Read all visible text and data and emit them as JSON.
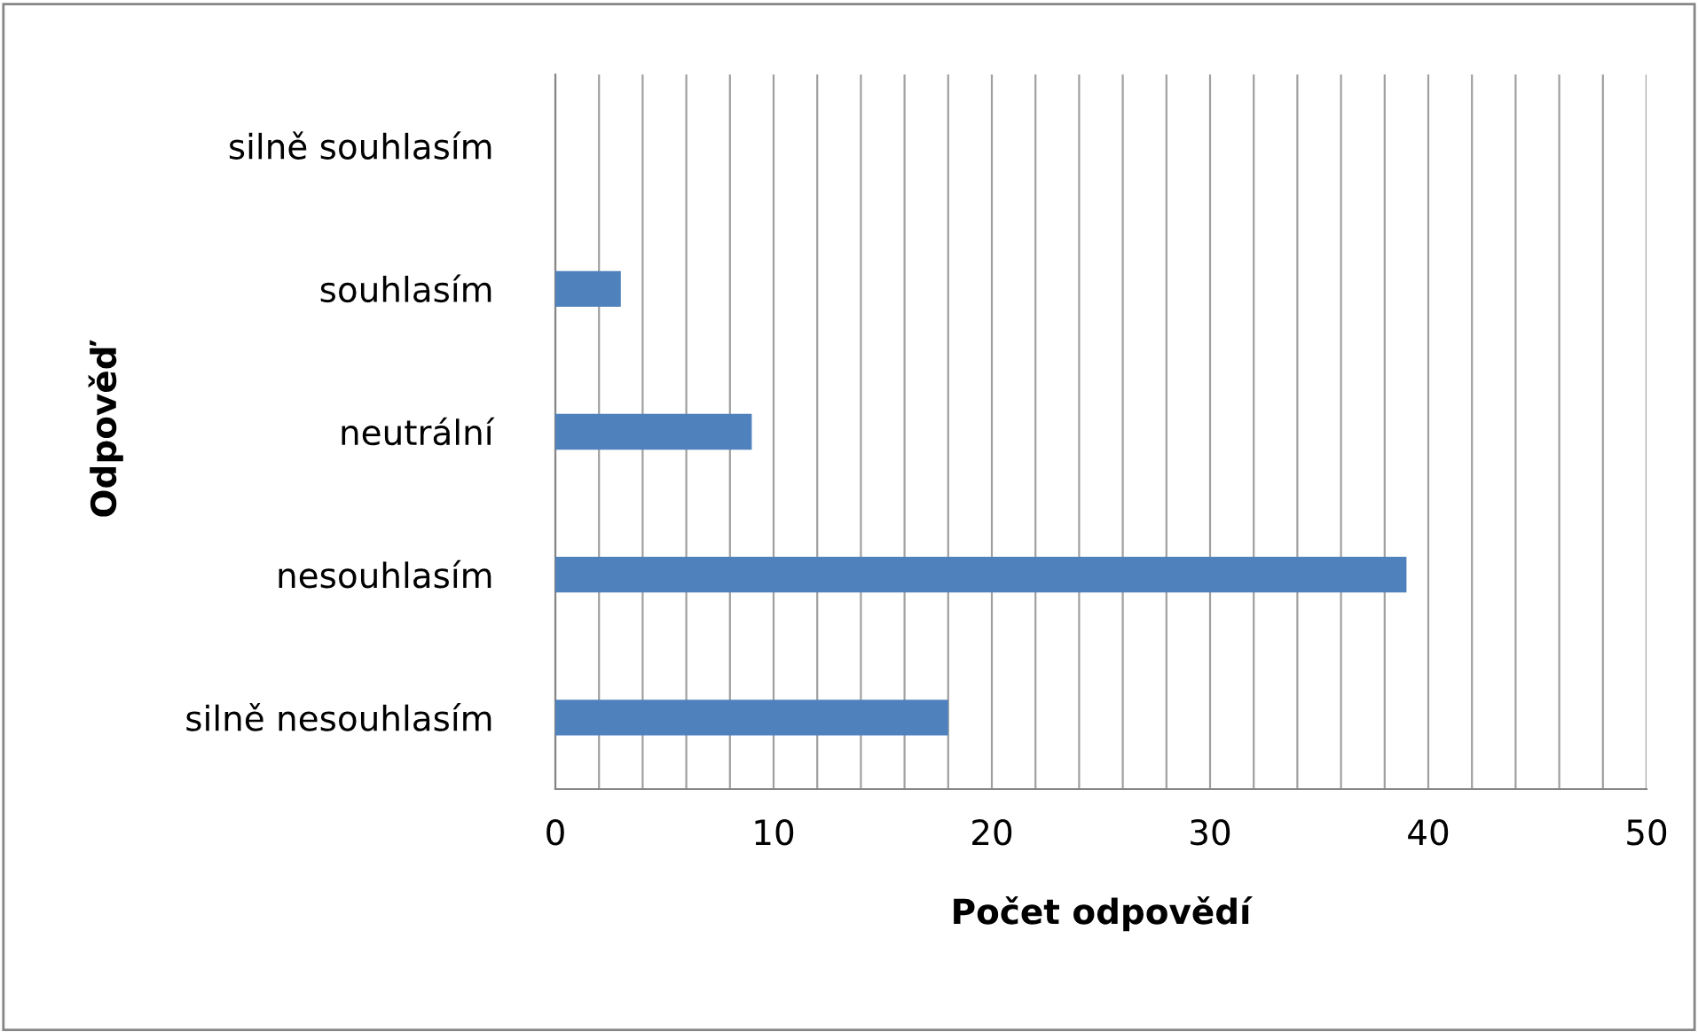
{
  "chart_data": {
    "type": "bar",
    "orientation": "horizontal",
    "ylabel": "Odpověď",
    "xlabel": "Počet odpovědí",
    "categories": [
      "silně souhlasím",
      "souhlasím",
      "neutrální",
      "nesouhlasím",
      "silně nesouhlasím"
    ],
    "values": [
      0,
      3,
      9,
      39,
      18
    ],
    "color": "#4f81bd",
    "xlim": [
      0,
      50
    ],
    "xticks": [
      0,
      {
        "value": 2,
        "label": null
      },
      {
        "value": 4,
        "label": null
      },
      {
        "value": 6,
        "label": null
      },
      {
        "value": 8,
        "label": null
      },
      10,
      {
        "value": 12,
        "label": null
      },
      {
        "value": 14,
        "label": null
      },
      {
        "value": 16,
        "label": null
      },
      {
        "value": 18,
        "label": null
      },
      20,
      {
        "value": 22,
        "label": null
      },
      {
        "value": 24,
        "label": null
      },
      {
        "value": 26,
        "label": null
      },
      {
        "value": 28,
        "label": null
      },
      30,
      {
        "value": 32,
        "label": null
      },
      {
        "value": 34,
        "label": null
      },
      {
        "value": 36,
        "label": null
      },
      {
        "value": 38,
        "label": null
      },
      40,
      {
        "value": 42,
        "label": null
      },
      {
        "value": 44,
        "label": null
      },
      {
        "value": 46,
        "label": null
      },
      {
        "value": 48,
        "label": null
      },
      50
    ],
    "grid": "x"
  }
}
